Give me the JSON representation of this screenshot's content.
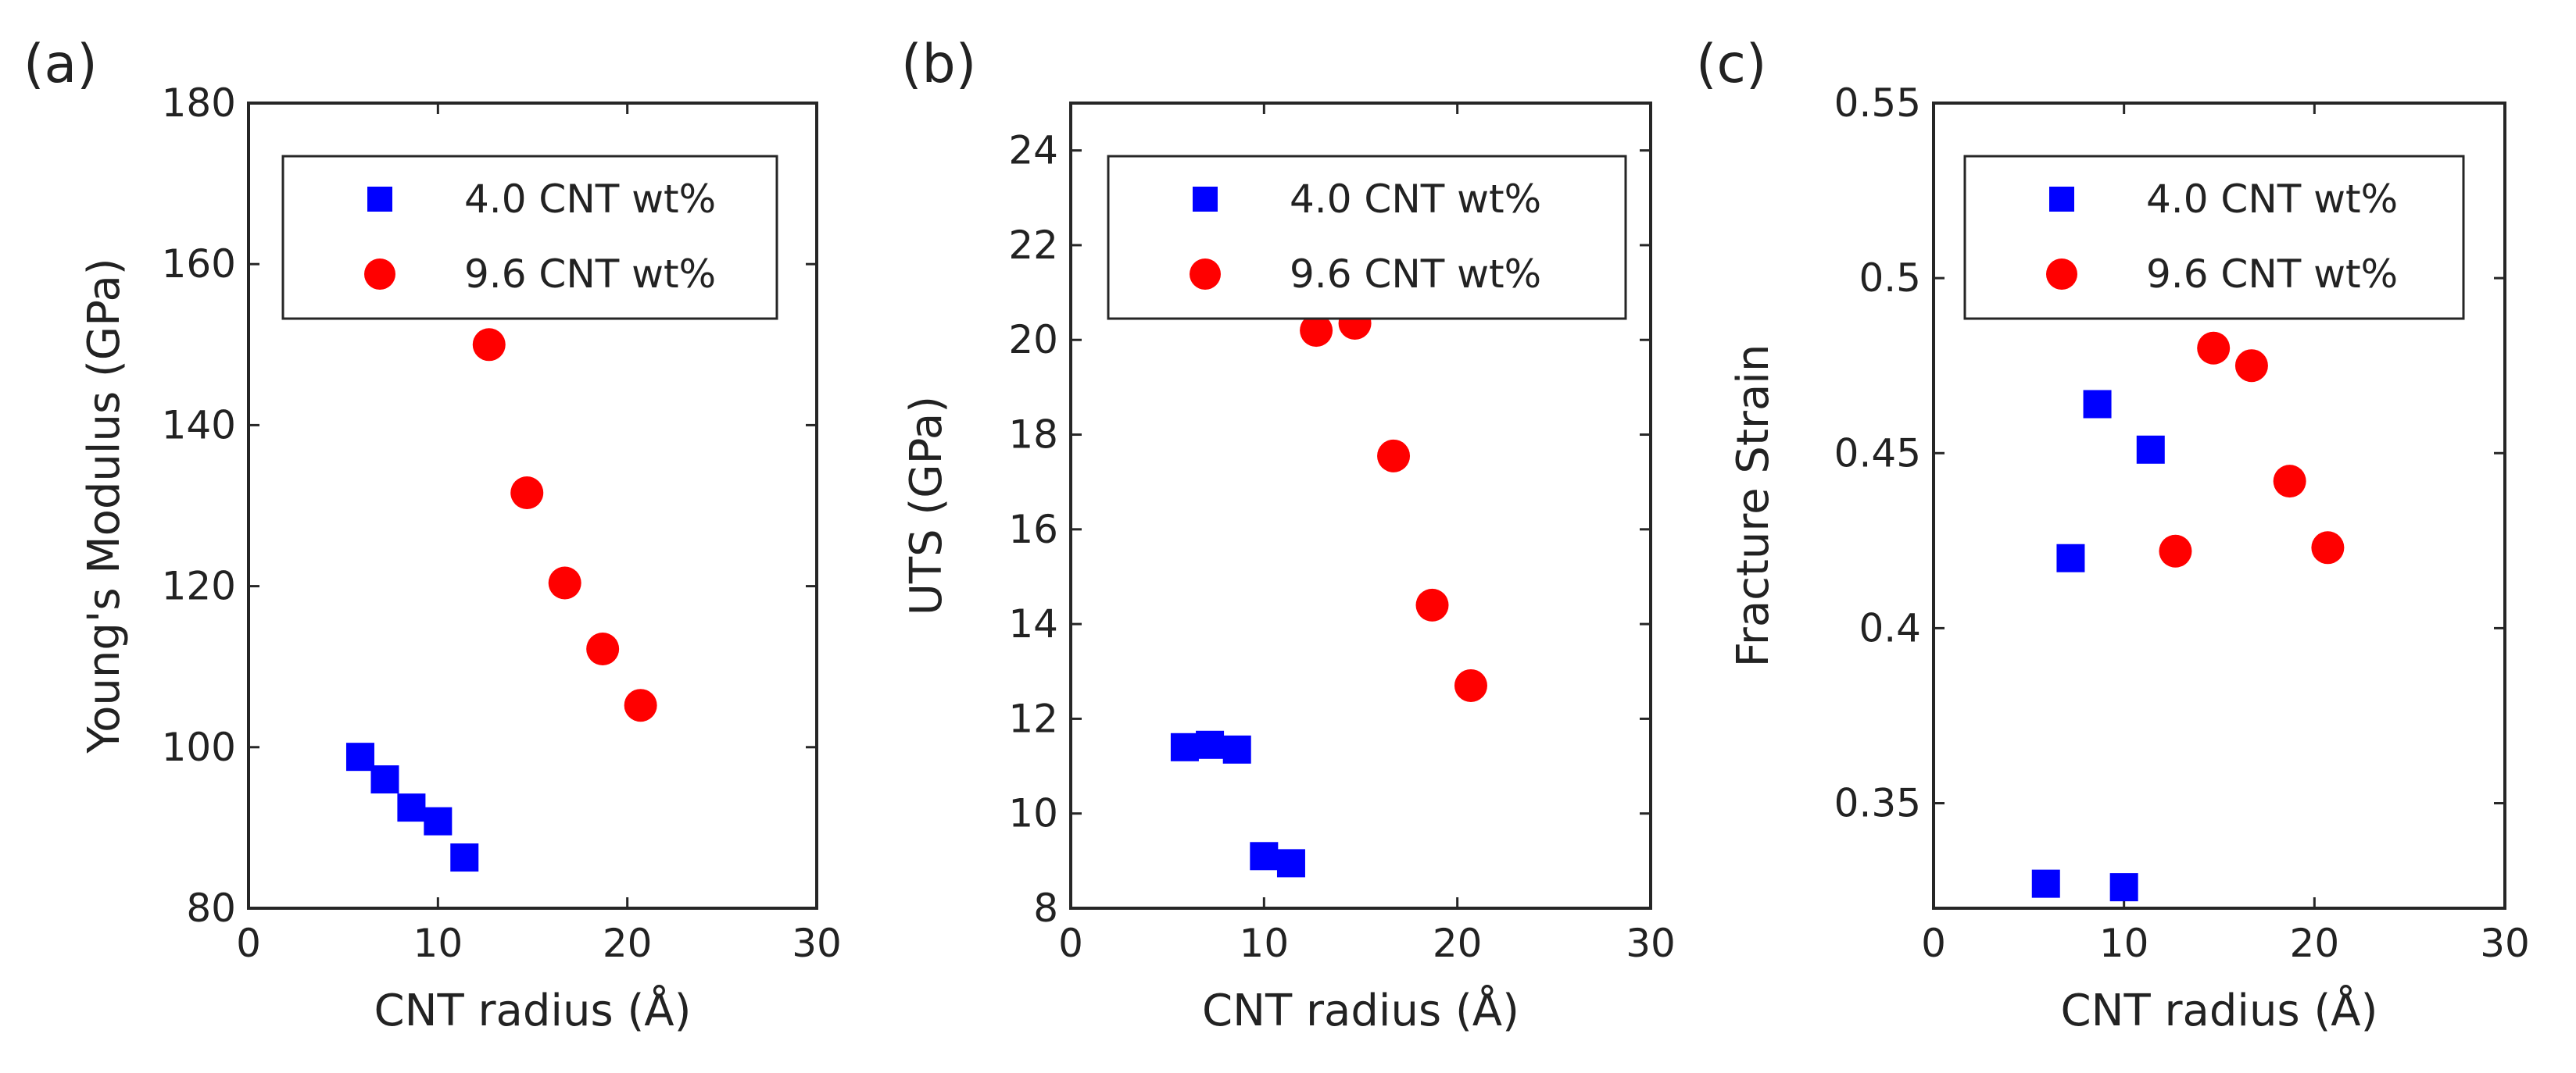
{
  "chart_data": [
    {
      "type": "scatter",
      "panel_label": "(a)",
      "xlabel": "CNT radius (Å)",
      "ylabel": "Young's Modulus (GPa)",
      "xlim": [
        0,
        30
      ],
      "ylim": [
        80,
        180
      ],
      "xticks": [
        0,
        10,
        20,
        30
      ],
      "yticks": [
        80,
        100,
        120,
        140,
        160,
        180
      ],
      "legend_position": "top",
      "series": [
        {
          "name": "4.0 CNT wt%",
          "marker": "square",
          "color": "#0000ff",
          "x": [
            5.9,
            7.2,
            8.6,
            10.0,
            11.4
          ],
          "y": [
            98.8,
            96.0,
            92.5,
            90.8,
            86.3
          ]
        },
        {
          "name": "9.6 CNT wt%",
          "marker": "circle",
          "color": "#ff0000",
          "x": [
            12.7,
            14.7,
            16.7,
            18.7,
            20.7
          ],
          "y": [
            150.0,
            131.6,
            120.4,
            112.2,
            105.2
          ]
        }
      ]
    },
    {
      "type": "scatter",
      "panel_label": "(b)",
      "xlabel": "CNT radius (Å)",
      "ylabel": "UTS (GPa)",
      "xlim": [
        0,
        30
      ],
      "ylim": [
        8,
        25
      ],
      "xticks": [
        0,
        10,
        20,
        30
      ],
      "yticks": [
        8,
        10,
        12,
        14,
        16,
        18,
        20,
        22,
        24
      ],
      "legend_position": "top",
      "series": [
        {
          "name": "4.0 CNT wt%",
          "marker": "square",
          "color": "#0000ff",
          "x": [
            5.9,
            7.2,
            8.6,
            10.0,
            11.4
          ],
          "y": [
            11.4,
            11.45,
            11.35,
            9.1,
            8.95
          ]
        },
        {
          "name": "9.6 CNT wt%",
          "marker": "circle",
          "color": "#ff0000",
          "x": [
            12.7,
            14.7,
            16.7,
            18.7,
            20.7
          ],
          "y": [
            20.2,
            20.35,
            17.55,
            14.4,
            12.7
          ]
        }
      ]
    },
    {
      "type": "scatter",
      "panel_label": "(c)",
      "xlabel": "CNT radius (Å)",
      "ylabel": "Fracture Strain",
      "xlim": [
        0,
        30
      ],
      "ylim": [
        0.32,
        0.55
      ],
      "xticks": [
        0,
        10,
        20,
        30
      ],
      "yticks": [
        0.35,
        0.4,
        0.45,
        0.5,
        0.55
      ],
      "legend_position": "top",
      "series": [
        {
          "name": "4.0 CNT wt%",
          "marker": "square",
          "color": "#0000ff",
          "x": [
            5.9,
            7.2,
            8.6,
            10.0,
            11.4
          ],
          "y": [
            0.327,
            0.42,
            0.464,
            0.326,
            0.451
          ]
        },
        {
          "name": "9.6 CNT wt%",
          "marker": "circle",
          "color": "#ff0000",
          "x": [
            12.7,
            14.7,
            16.7,
            18.7,
            20.7
          ],
          "y": [
            0.422,
            0.48,
            0.475,
            0.442,
            0.423
          ]
        }
      ]
    }
  ]
}
